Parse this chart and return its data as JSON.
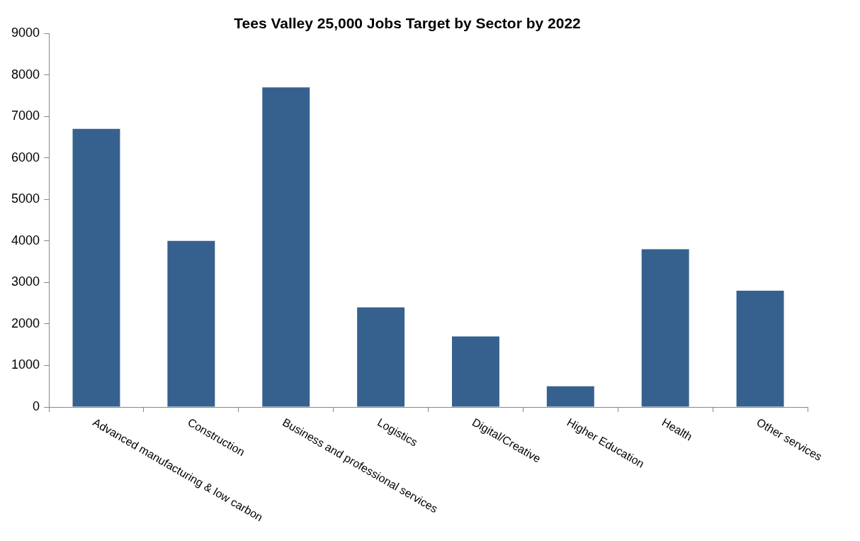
{
  "chart_data": {
    "type": "bar",
    "title": "Tees Valley 25,000 Jobs Target by Sector by 2022",
    "categories": [
      "Advanced manufacturing & low carbon",
      "Construction",
      "Business and professional services",
      "Logistics",
      "Digital/Creative",
      "Higher Education",
      "Health",
      "Other services"
    ],
    "values": [
      6700,
      4000,
      7700,
      2400,
      1700,
      500,
      3800,
      2800
    ],
    "color": "#36618f",
    "ylim": [
      0,
      9000
    ],
    "yticks": [
      0,
      1000,
      2000,
      3000,
      4000,
      5000,
      6000,
      7000,
      8000,
      9000
    ],
    "grid": false,
    "legend": false
  }
}
